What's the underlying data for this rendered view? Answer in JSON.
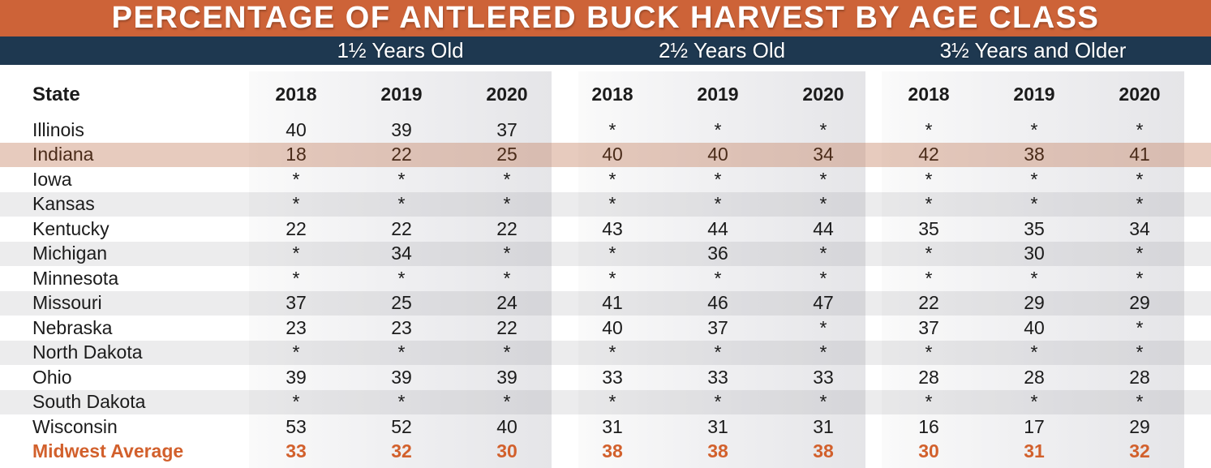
{
  "title": "PERCENTAGE OF ANTLERED BUCK HARVEST BY AGE CLASS",
  "chart_data": {
    "type": "table",
    "title": "PERCENTAGE OF ANTLERED BUCK HARVEST BY AGE CLASS",
    "column_groups": [
      "1½ Years Old",
      "2½ Years Old",
      "3½ Years and Older"
    ],
    "years_per_group": [
      "2018",
      "2019",
      "2020"
    ],
    "row_header": "State",
    "missing_value_symbol": "*",
    "rows": [
      {
        "state": "Illinois",
        "values": [
          "40",
          "39",
          "37",
          "*",
          "*",
          "*",
          "*",
          "*",
          "*"
        ]
      },
      {
        "state": "Indiana",
        "values": [
          "18",
          "22",
          "25",
          "40",
          "40",
          "34",
          "42",
          "38",
          "41"
        ],
        "highlight": true
      },
      {
        "state": "Iowa",
        "values": [
          "*",
          "*",
          "*",
          "*",
          "*",
          "*",
          "*",
          "*",
          "*"
        ]
      },
      {
        "state": "Kansas",
        "values": [
          "*",
          "*",
          "*",
          "*",
          "*",
          "*",
          "*",
          "*",
          "*"
        ]
      },
      {
        "state": "Kentucky",
        "values": [
          "22",
          "22",
          "22",
          "43",
          "44",
          "44",
          "35",
          "35",
          "34"
        ]
      },
      {
        "state": "Michigan",
        "values": [
          "*",
          "34",
          "*",
          "*",
          "36",
          "*",
          "*",
          "30",
          "*"
        ]
      },
      {
        "state": "Minnesota",
        "values": [
          "*",
          "*",
          "*",
          "*",
          "*",
          "*",
          "*",
          "*",
          "*"
        ]
      },
      {
        "state": "Missouri",
        "values": [
          "37",
          "25",
          "24",
          "41",
          "46",
          "47",
          "22",
          "29",
          "29"
        ]
      },
      {
        "state": "Nebraska",
        "values": [
          "23",
          "23",
          "22",
          "40",
          "37",
          "*",
          "37",
          "40",
          "*"
        ]
      },
      {
        "state": "North Dakota",
        "values": [
          "*",
          "*",
          "*",
          "*",
          "*",
          "*",
          "*",
          "*",
          "*"
        ]
      },
      {
        "state": "Ohio",
        "values": [
          "39",
          "39",
          "39",
          "33",
          "33",
          "33",
          "28",
          "28",
          "28"
        ]
      },
      {
        "state": "South Dakota",
        "values": [
          "*",
          "*",
          "*",
          "*",
          "*",
          "*",
          "*",
          "*",
          "*"
        ]
      },
      {
        "state": "Wisconsin",
        "values": [
          "53",
          "52",
          "40",
          "31",
          "31",
          "31",
          "16",
          "17",
          "29"
        ]
      },
      {
        "state": "Midwest Average",
        "values": [
          "33",
          "32",
          "30",
          "38",
          "38",
          "38",
          "30",
          "31",
          "32"
        ],
        "average": true
      }
    ]
  },
  "colors": {
    "accent_orange": "#CD6338",
    "navy": "#1E3850",
    "band_gray": "#E5E5E8",
    "average_orange": "#D2602C",
    "highlight_text": "#4A2B19"
  }
}
